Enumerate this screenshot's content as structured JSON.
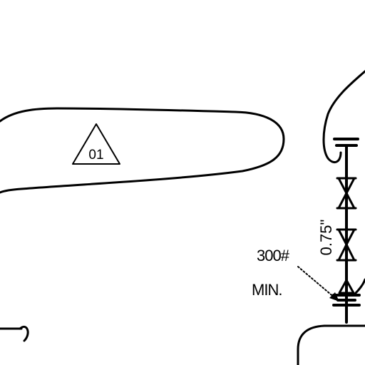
{
  "diagram": {
    "tag_label": "01",
    "rating_line1": "300#",
    "rating_line2": "MIN.",
    "pipe_size": "0.75\""
  },
  "colors": {
    "ink": "#000000",
    "background": "#ffffff"
  }
}
